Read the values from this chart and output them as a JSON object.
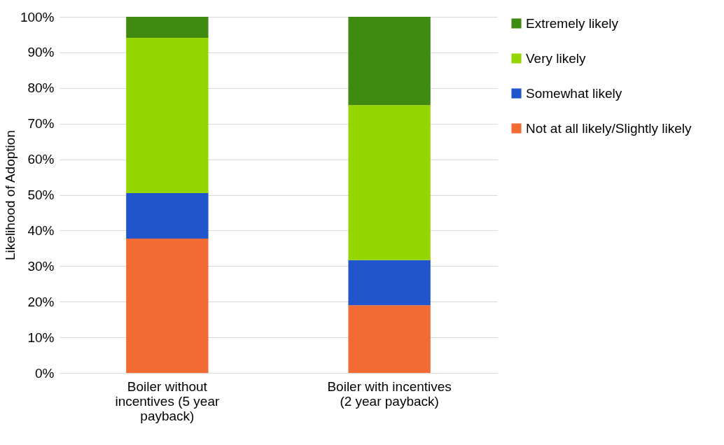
{
  "chart_data": {
    "type": "bar",
    "stacked": true,
    "ylabel": "Likelihood of Adoption",
    "categories": [
      "Boiler without incentives (5 year payback)",
      "Boiler with incentives (2 year payback)"
    ],
    "series": [
      {
        "name": "Not at all likely/Slightly likely",
        "color": "#f26b35",
        "values": [
          37.7,
          19.0
        ]
      },
      {
        "name": "Somewhat likely",
        "color": "#2155cc",
        "values": [
          12.8,
          12.7
        ]
      },
      {
        "name": "Very likely",
        "color": "#95d600",
        "values": [
          43.6,
          43.5
        ]
      },
      {
        "name": "Extremely likely",
        "color": "#3f8a10",
        "values": [
          5.9,
          24.8
        ]
      }
    ],
    "ylim": [
      0,
      100
    ],
    "yticks": [
      {
        "value": 0,
        "label": "0%"
      },
      {
        "value": 10,
        "label": "10%"
      },
      {
        "value": 20,
        "label": "20%"
      },
      {
        "value": 30,
        "label": "30%"
      },
      {
        "value": 40,
        "label": "40%"
      },
      {
        "value": 50,
        "label": "50%"
      },
      {
        "value": 60,
        "label": "60%"
      },
      {
        "value": 70,
        "label": "70%"
      },
      {
        "value": 80,
        "label": "80%"
      },
      {
        "value": 90,
        "label": "90%"
      },
      {
        "value": 100,
        "label": "100%"
      }
    ],
    "grid": "y",
    "legend": "right"
  }
}
